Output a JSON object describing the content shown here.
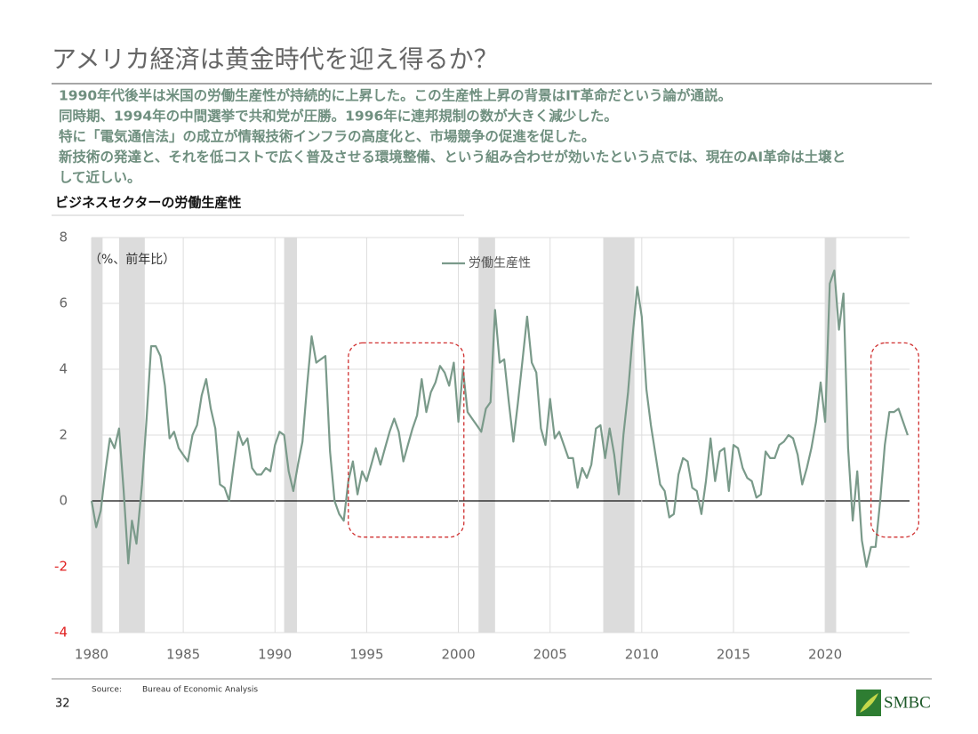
{
  "title": "アメリカ経済は黄金時代を迎え得るか？",
  "body": [
    "1990年代後半は米国の労働生産性が持続的に上昇した。この生産性上昇の背景はIT革命だという論が通説。",
    "同時期、1994年の中間選挙で共和党が圧勝。1996年に連邦規制の数が大きく減少した。",
    "特に「電気通信法」の成立が情報技術インフラの高度化と、市場競争の促進を促した。",
    "新技術の発達と、それを低コストで広く普及させる環境整備、という組み合わせが効いたという点では、現在のAI革命は土壌と",
    "して近しい。"
  ],
  "footer": {
    "source_label": "Source:",
    "source": "Bureau of Economic Analysis",
    "page": "32",
    "logo": "SMBC"
  },
  "chart_data": {
    "type": "line",
    "title": "ビジネスセクターの労働生産性",
    "y_unit_label": "（%、前年比）",
    "x": [
      1980,
      1980.25,
      1980.5,
      1980.75,
      1981,
      1981.25,
      1981.5,
      1981.75,
      1982,
      1982.2,
      1982.45,
      1982.75,
      1983,
      1983.25,
      1983.5,
      1983.75,
      1984,
      1984.25,
      1984.5,
      1984.75,
      1985,
      1985.25,
      1985.5,
      1985.75,
      1986,
      1986.25,
      1986.5,
      1986.75,
      1987,
      1987.25,
      1987.5,
      1987.75,
      1988,
      1988.25,
      1988.5,
      1988.75,
      1989,
      1989.25,
      1989.5,
      1989.75,
      1990,
      1990.25,
      1990.5,
      1990.75,
      1991,
      1991.25,
      1991.5,
      1991.75,
      1992,
      1992.25,
      1992.5,
      1992.75,
      1993,
      1993.25,
      1993.5,
      1993.75,
      1994,
      1994.25,
      1994.5,
      1994.75,
      1995,
      1995.25,
      1995.5,
      1995.75,
      1996,
      1996.25,
      1996.5,
      1996.75,
      1997,
      1997.25,
      1997.5,
      1997.75,
      1998,
      1998.25,
      1998.5,
      1998.75,
      1999,
      1999.25,
      1999.5,
      1999.75,
      2000,
      2000.25,
      2000.5,
      2000.75,
      2001,
      2001.25,
      2001.5,
      2001.75,
      2002,
      2002.25,
      2002.5,
      2002.75,
      2003,
      2003.25,
      2003.5,
      2003.75,
      2004,
      2004.25,
      2004.5,
      2004.75,
      2005,
      2005.25,
      2005.5,
      2005.75,
      2006,
      2006.25,
      2006.5,
      2006.75,
      2007,
      2007.25,
      2007.5,
      2007.75,
      2008,
      2008.25,
      2008.5,
      2008.75,
      2009,
      2009.25,
      2009.5,
      2009.75,
      2010,
      2010.25,
      2010.5,
      2010.75,
      2011,
      2011.25,
      2011.5,
      2011.75,
      2012,
      2012.25,
      2012.5,
      2012.75,
      2013,
      2013.25,
      2013.5,
      2013.75,
      2014,
      2014.25,
      2014.5,
      2014.75,
      2015,
      2015.25,
      2015.5,
      2015.75,
      2016,
      2016.25,
      2016.5,
      2016.75,
      2017,
      2017.25,
      2017.5,
      2017.75,
      2018,
      2018.25,
      2018.5,
      2018.75,
      2019,
      2019.25,
      2019.5,
      2019.75,
      2020,
      2020.25,
      2020.5,
      2020.75,
      2021,
      2021.25,
      2021.5,
      2021.75,
      2022,
      2022.25,
      2022.5,
      2022.75,
      2023,
      2023.25,
      2023.5,
      2023.75,
      2024,
      2024.25,
      2024.5
    ],
    "series": [
      {
        "name": "労働生産性",
        "color": "#7a9a8a",
        "values": [
          0.0,
          -0.8,
          -0.3,
          0.9,
          1.9,
          1.6,
          2.2,
          0.3,
          -1.9,
          -0.6,
          -1.3,
          0.5,
          2.5,
          4.7,
          4.7,
          4.4,
          3.5,
          1.9,
          2.1,
          1.6,
          1.4,
          1.2,
          2.0,
          2.3,
          3.2,
          3.7,
          2.8,
          2.2,
          0.5,
          0.4,
          0.0,
          1.1,
          2.1,
          1.7,
          1.9,
          1.0,
          0.8,
          0.8,
          1.0,
          0.9,
          1.7,
          2.1,
          2.0,
          0.9,
          0.3,
          1.1,
          1.8,
          3.5,
          5.0,
          4.2,
          4.3,
          4.4,
          1.5,
          0.0,
          -0.4,
          -0.6,
          0.6,
          1.2,
          0.2,
          0.9,
          0.6,
          1.1,
          1.6,
          1.1,
          1.6,
          2.1,
          2.5,
          2.1,
          1.2,
          1.7,
          2.2,
          2.6,
          3.7,
          2.7,
          3.3,
          3.6,
          4.1,
          3.9,
          3.5,
          4.2,
          2.4,
          4.0,
          2.7,
          2.5,
          2.3,
          2.1,
          2.8,
          3.0,
          5.8,
          4.2,
          4.3,
          3.0,
          1.8,
          3.0,
          4.3,
          5.6,
          4.2,
          3.9,
          2.2,
          1.7,
          3.1,
          1.9,
          2.1,
          1.7,
          1.3,
          1.3,
          0.4,
          1.0,
          0.7,
          1.1,
          2.2,
          2.3,
          1.3,
          2.2,
          1.4,
          0.2,
          2.0,
          3.3,
          5.0,
          6.5,
          5.6,
          3.4,
          2.3,
          1.4,
          0.5,
          0.3,
          -0.5,
          -0.4,
          0.8,
          1.3,
          1.2,
          0.4,
          0.3,
          -0.4,
          0.6,
          1.9,
          0.6,
          1.5,
          1.6,
          0.3,
          1.7,
          1.6,
          1.0,
          0.7,
          0.6,
          0.1,
          0.2,
          1.5,
          1.3,
          1.3,
          1.7,
          1.8,
          2.0,
          1.9,
          1.4,
          0.5,
          1.0,
          1.6,
          2.4,
          3.6,
          2.4,
          6.6,
          7.0,
          5.2,
          6.3,
          1.6,
          -0.6,
          0.9,
          -1.2,
          -2.0,
          -1.4,
          -1.4,
          0.0,
          1.7,
          2.7,
          2.7,
          2.8,
          2.4,
          2.0
        ]
      }
    ],
    "xlim": [
      1980,
      2024.6
    ],
    "xticks": [
      1980,
      1985,
      1990,
      1995,
      2000,
      2005,
      2010,
      2015,
      2020
    ],
    "ylim": [
      -4,
      8
    ],
    "yticks": [
      -4,
      -2,
      0,
      2,
      4,
      6,
      8
    ],
    "grid": true,
    "negative_tick_color": "#e02020",
    "shaded_periods": [
      [
        1980,
        1980.6
      ],
      [
        1981.5,
        1982.9
      ],
      [
        1990.5,
        1991.2
      ],
      [
        2001.1,
        2002.0
      ],
      [
        2007.9,
        2009.6
      ],
      [
        2020.0,
        2020.6
      ]
    ],
    "shade_color": "#dcdcdc",
    "highlights": [
      {
        "x": [
          1994.0,
          2000.3
        ],
        "y": [
          -1.1,
          4.8
        ]
      },
      {
        "x": [
          2022.5,
          2025.1
        ],
        "y": [
          -1.1,
          4.8
        ]
      }
    ],
    "highlight_color": "#d03030",
    "legend": "top-center"
  }
}
